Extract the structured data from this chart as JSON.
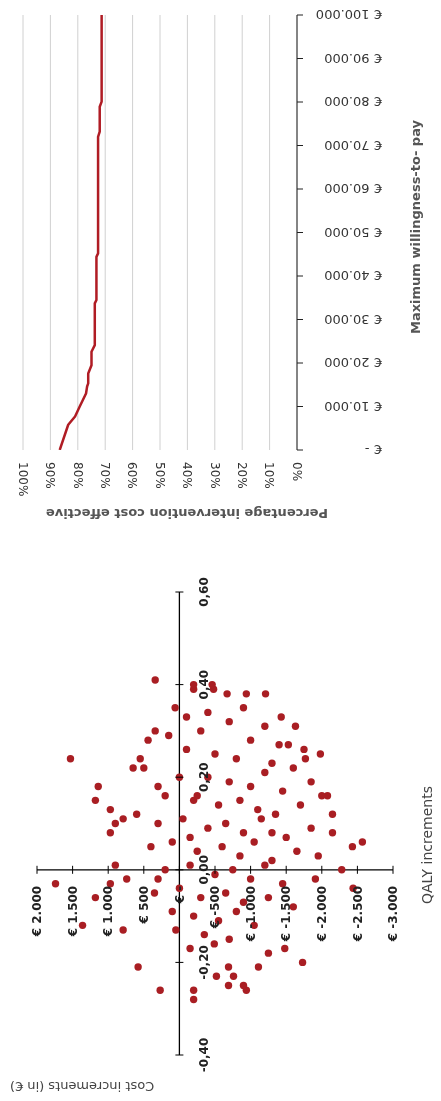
{
  "chart_data": [
    {
      "type": "scatter",
      "xlabel": "Cost increments (in €)",
      "ylabel": "QALY increments",
      "color": "#a91e23",
      "marker": "circle",
      "xlim": [
        2000,
        -3000
      ],
      "xticks": [
        {
          "value": 2000,
          "label": "€ 2.000"
        },
        {
          "value": 1500,
          "label": "€ 1.500"
        },
        {
          "value": 1000,
          "label": "€ 1.000"
        },
        {
          "value": 500,
          "label": "€ 500"
        },
        {
          "value": 0,
          "label": "€ -"
        },
        {
          "value": -500,
          "label": "€ -500"
        },
        {
          "value": -1000,
          "label": "€ -1.000"
        },
        {
          "value": -1500,
          "label": "€ -1.500"
        },
        {
          "value": -2000,
          "label": "€ -2.000"
        },
        {
          "value": -2500,
          "label": "€ -2.500"
        },
        {
          "value": -3000,
          "label": "€ -3.000"
        }
      ],
      "ylim": [
        -0.4,
        0.6
      ],
      "yticks": [
        {
          "value": -0.4,
          "label": "-0,40"
        },
        {
          "value": -0.2,
          "label": "-0,20"
        },
        {
          "value": 0,
          "label": "0,00"
        },
        {
          "value": 0.2,
          "label": "0,20"
        },
        {
          "value": 0.4,
          "label": "0,40"
        },
        {
          "value": 0.6,
          "label": "0,60"
        }
      ],
      "x": [
        340,
        1530,
        1740,
        1360,
        1140,
        1180,
        1180,
        790,
        580,
        270,
        -200,
        970,
        790,
        900,
        970,
        900,
        970,
        740,
        650,
        550,
        440,
        340,
        60,
        -200,
        -480,
        -200,
        -460,
        -670,
        -940,
        -1210,
        -1430,
        -1630,
        -1530,
        -1770,
        -1980,
        -2080,
        -2000,
        -2150,
        -2150,
        -2430,
        -2570,
        -2280,
        -2440,
        -1910,
        -1730,
        -1480,
        -1250,
        -1110,
        -940,
        -900,
        -690,
        -760,
        -690,
        -520,
        -200,
        -490,
        -300,
        -700,
        -1000,
        -1200,
        -100,
        -500,
        -800,
        -1300,
        -1600,
        0,
        -400,
        -700,
        -1000,
        -1200,
        -1450,
        200,
        -200,
        -550,
        -850,
        -1100,
        -1350,
        -1700,
        300,
        -50,
        -400,
        -650,
        -900,
        -1150,
        -1500,
        -1850,
        400,
        100,
        -250,
        -600,
        -850,
        -1050,
        -1300,
        -1650,
        200,
        -150,
        -500,
        -750,
        -1000,
        -1200,
        -1450,
        350,
        0,
        -300,
        -650,
        -900,
        -1250,
        100,
        -200,
        -550,
        -800,
        -1050,
        -350,
        -700,
        50,
        -900,
        -400,
        -1400,
        300,
        500,
        600,
        -1950,
        -1600,
        -1850,
        -1750,
        -1300,
        -150,
        150,
        -100,
        -250,
        -150,
        300
      ],
      "values": [
        0.41,
        0.24,
        -0.03,
        -0.12,
        0.18,
        0.15,
        -0.06,
        -0.13,
        -0.21,
        -0.26,
        -0.28,
        0.13,
        0.11,
        0.1,
        0.08,
        0.01,
        -0.03,
        -0.02,
        0.22,
        0.24,
        0.28,
        0.3,
        0.35,
        0.39,
        0.39,
        0.4,
        0.4,
        0.38,
        0.38,
        0.38,
        0.33,
        0.31,
        0.27,
        0.24,
        0.25,
        0.16,
        0.16,
        0.12,
        0.08,
        0.05,
        0.06,
        0.0,
        -0.04,
        -0.02,
        -0.2,
        -0.17,
        -0.18,
        -0.21,
        -0.26,
        -0.25,
        -0.25,
        -0.23,
        -0.21,
        -0.23,
        -0.26,
        -0.16,
        0.3,
        0.32,
        0.28,
        0.31,
        0.26,
        0.25,
        0.24,
        0.23,
        0.22,
        0.2,
        0.2,
        0.19,
        0.18,
        0.21,
        0.17,
        0.16,
        0.15,
        0.14,
        0.15,
        0.13,
        0.12,
        0.14,
        0.1,
        0.11,
        0.09,
        0.1,
        0.08,
        0.11,
        0.07,
        0.09,
        0.05,
        0.06,
        0.04,
        0.05,
        0.03,
        0.06,
        0.02,
        0.04,
        0.0,
        0.01,
        -0.01,
        0.0,
        -0.02,
        0.01,
        -0.03,
        -0.05,
        -0.04,
        -0.06,
        -0.05,
        -0.07,
        -0.06,
        -0.09,
        -0.1,
        -0.11,
        -0.09,
        -0.12,
        -0.14,
        -0.15,
        -0.13,
        0.35,
        0.34,
        0.27,
        0.18,
        0.22,
        0.12,
        0.03,
        -0.08,
        0.19,
        0.26,
        0.08,
        -0.17,
        0.29,
        0.33,
        0.16,
        0.07,
        -0.02
      ]
    },
    {
      "type": "line",
      "xlabel": "Percentage intervention cost effective",
      "ylabel": "Maximum willingness-to- pay",
      "color": "#b01c24",
      "grid": "x",
      "xlim": [
        100,
        0
      ],
      "xticks": [
        {
          "value": 0,
          "label": "0%"
        },
        {
          "value": 10,
          "label": "10%"
        },
        {
          "value": 20,
          "label": "20%"
        },
        {
          "value": 30,
          "label": "30%"
        },
        {
          "value": 40,
          "label": "40%"
        },
        {
          "value": 50,
          "label": "50%"
        },
        {
          "value": 60,
          "label": "60%"
        },
        {
          "value": 70,
          "label": "70%"
        },
        {
          "value": 80,
          "label": "80%"
        },
        {
          "value": 90,
          "label": "90%"
        },
        {
          "value": 100,
          "label": "100%"
        }
      ],
      "ylim": [
        0,
        100000
      ],
      "yticks": [
        {
          "value": 0,
          "label": "€ -"
        },
        {
          "value": 10000,
          "label": "€ 10.000"
        },
        {
          "value": 20000,
          "label": "€ 20.000"
        },
        {
          "value": 30000,
          "label": "€ 30.000"
        },
        {
          "value": 40000,
          "label": "€ 40.000"
        },
        {
          "value": 50000,
          "label": "€ 50.000"
        },
        {
          "value": 60000,
          "label": "€ 60.000"
        },
        {
          "value": 70000,
          "label": "€ 70.000"
        },
        {
          "value": 80000,
          "label": "€ 80.000"
        },
        {
          "value": 90000,
          "label": "€ 90.000"
        },
        {
          "value": 100000,
          "label": "€ 100.000"
        }
      ],
      "x": [
        86.6,
        83.5,
        81,
        79.3,
        77,
        76.6,
        76.2,
        76.2,
        75,
        75,
        73.8,
        73.8,
        73.2,
        73.2,
        72.6,
        72.6,
        72,
        72,
        71.3,
        71.3
      ],
      "values": [
        0,
        5800,
        7700,
        10000,
        13000,
        14600,
        15300,
        17600,
        19500,
        22600,
        24100,
        33700,
        34500,
        44400,
        45200,
        72000,
        73200,
        78900,
        80100,
        100000
      ]
    }
  ]
}
